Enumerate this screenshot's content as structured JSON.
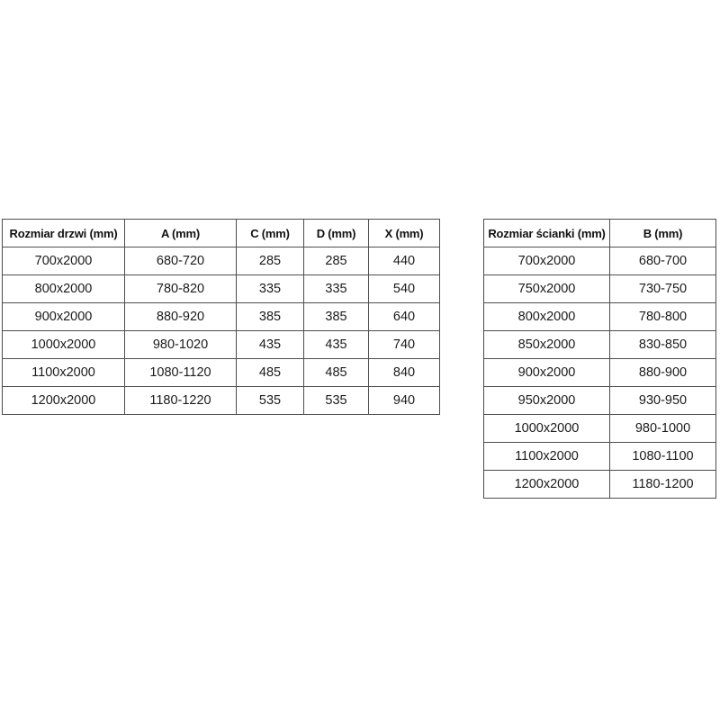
{
  "page": {
    "background_color": "#ffffff",
    "border_color": "#4d4d4d",
    "text_color": "#1b1b1b"
  },
  "doors_table": {
    "headers": [
      "Rozmiar drzwi (mm)",
      "A (mm)",
      "C (mm)",
      "D (mm)",
      "X (mm)"
    ],
    "rows": [
      [
        "700x2000",
        "680-720",
        "285",
        "285",
        "440"
      ],
      [
        "800x2000",
        "780-820",
        "335",
        "335",
        "540"
      ],
      [
        "900x2000",
        "880-920",
        "385",
        "385",
        "640"
      ],
      [
        "1000x2000",
        "980-1020",
        "435",
        "435",
        "740"
      ],
      [
        "1100x2000",
        "1080-1120",
        "485",
        "485",
        "840"
      ],
      [
        "1200x2000",
        "1180-1220",
        "535",
        "535",
        "940"
      ]
    ]
  },
  "walls_table": {
    "headers": [
      "Rozmiar ścianki (mm)",
      "B (mm)"
    ],
    "rows": [
      [
        "700x2000",
        "680-700"
      ],
      [
        "750x2000",
        "730-750"
      ],
      [
        "800x2000",
        "780-800"
      ],
      [
        "850x2000",
        "830-850"
      ],
      [
        "900x2000",
        "880-900"
      ],
      [
        "950x2000",
        "930-950"
      ],
      [
        "1000x2000",
        "980-1000"
      ],
      [
        "1100x2000",
        "1080-1100"
      ],
      [
        "1200x2000",
        "1180-1200"
      ]
    ]
  }
}
